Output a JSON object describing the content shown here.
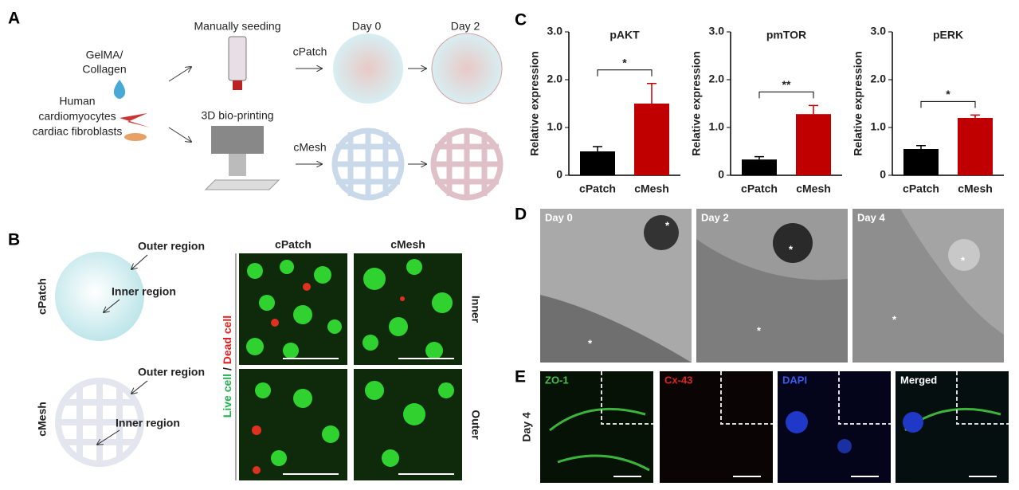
{
  "panel_a": {
    "label": "A",
    "manual": "Manually seeding",
    "gelma": [
      "GelMA/",
      "Collagen"
    ],
    "cells": [
      "Human",
      "cardiomyocytes",
      "cardiac fibroblasts"
    ],
    "printing": "3D bio-printing",
    "cpatch": "cPatch",
    "cmesh": "cMesh",
    "days": [
      "Day 0",
      "Day 2"
    ]
  },
  "panel_b": {
    "label": "B",
    "region_outer": "Outer region",
    "region_inner": "Inner region",
    "side": [
      "cPatch",
      "cMesh"
    ],
    "columns": [
      "cPatch",
      "cMesh"
    ],
    "rows": [
      "Inner",
      "Outer"
    ],
    "stain_live": "Live cell",
    "stain_sep": "/",
    "stain_dead": "Dead cell"
  },
  "panel_c": {
    "label": "C"
  },
  "chart_data": [
    {
      "type": "bar",
      "title": "pAKT",
      "ylabel": "Relative expression",
      "categories": [
        "cPatch",
        "cMesh"
      ],
      "values": [
        0.5,
        1.5
      ],
      "errors": [
        0.1,
        0.42
      ],
      "colors": [
        "#000000",
        "#c00000"
      ],
      "ylim": [
        0,
        3
      ],
      "yticks": [
        0,
        {
          "value": 1,
          "label": "1.0"
        },
        {
          "value": 2,
          "label": "2.0"
        },
        {
          "value": 3,
          "label": "3.0"
        }
      ],
      "significance": "*"
    },
    {
      "type": "bar",
      "title": "pmTOR",
      "ylabel": "Relative expression",
      "categories": [
        "cPatch",
        "cMesh"
      ],
      "values": [
        0.33,
        1.28
      ],
      "errors": [
        0.06,
        0.18
      ],
      "colors": [
        "#000000",
        "#c00000"
      ],
      "ylim": [
        0,
        3
      ],
      "yticks": [
        0,
        {
          "value": 1,
          "label": "1.0"
        },
        {
          "value": 2,
          "label": "2.0"
        },
        {
          "value": 3,
          "label": "3.0"
        }
      ],
      "significance": "**"
    },
    {
      "type": "bar",
      "title": "pERK",
      "ylabel": "Relative expression",
      "categories": [
        "cPatch",
        "cMesh"
      ],
      "values": [
        0.55,
        1.2
      ],
      "errors": [
        0.07,
        0.06
      ],
      "colors": [
        "#000000",
        "#c00000"
      ],
      "ylim": [
        0,
        3
      ],
      "yticks": [
        0,
        {
          "value": 1,
          "label": "1.0"
        },
        {
          "value": 2,
          "label": "2.0"
        },
        {
          "value": 3,
          "label": "3.0"
        }
      ],
      "significance": "*"
    }
  ],
  "panel_d": {
    "label": "D",
    "days": [
      "Day 0",
      "Day 2",
      "Day 4"
    ],
    "marker": "*"
  },
  "panel_e": {
    "label": "E",
    "channels": [
      "ZO-1",
      "Cx-43",
      "DAPI",
      "Merged"
    ],
    "row": "Day 4"
  }
}
